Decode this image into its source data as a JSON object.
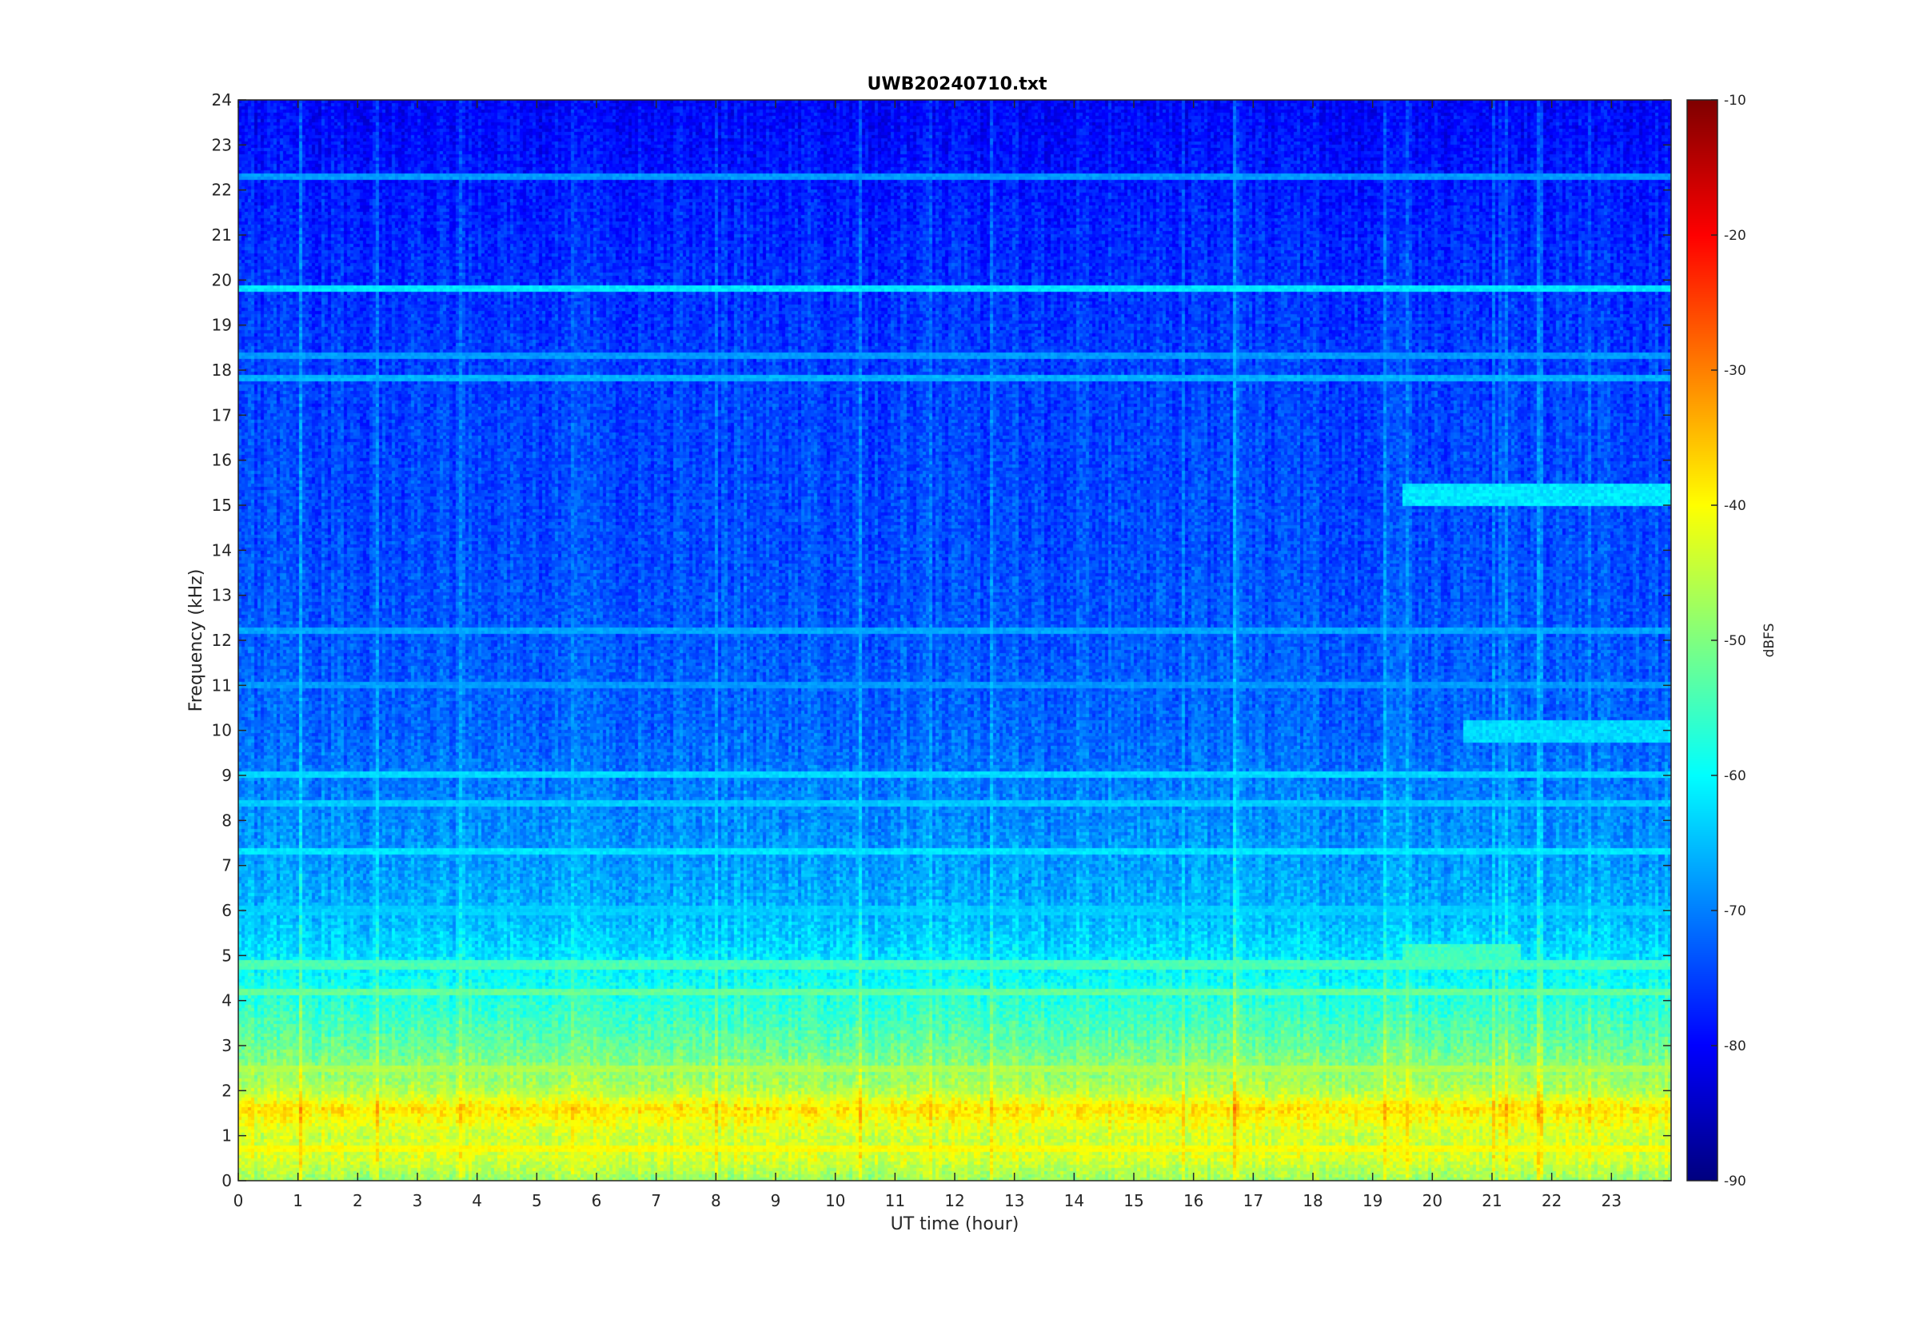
{
  "chart_data": {
    "type": "heatmap",
    "title": "UWB20240710.txt",
    "xlabel": "UT time (hour)",
    "ylabel": "Frequency (kHz)",
    "xlim": [
      0,
      24
    ],
    "ylim": [
      0,
      24
    ],
    "x_ticks": [
      "0",
      "1",
      "2",
      "3",
      "4",
      "5",
      "6",
      "7",
      "8",
      "9",
      "10",
      "11",
      "12",
      "13",
      "14",
      "15",
      "16",
      "17",
      "18",
      "19",
      "20",
      "21",
      "22",
      "23"
    ],
    "y_ticks": [
      "0",
      "1",
      "2",
      "3",
      "4",
      "5",
      "6",
      "7",
      "8",
      "9",
      "10",
      "11",
      "12",
      "13",
      "14",
      "15",
      "16",
      "17",
      "18",
      "19",
      "20",
      "21",
      "22",
      "23",
      "24"
    ],
    "colorbar": {
      "label": "dBFS",
      "range": [
        -90,
        -10
      ],
      "ticks": [
        "-10",
        "-20",
        "-30",
        "-40",
        "-50",
        "-60",
        "-70",
        "-80",
        "-90"
      ],
      "colormap": "jet"
    },
    "frequency_profile": [
      {
        "freq_khz": 0.0,
        "level_dbfs": -48
      },
      {
        "freq_khz": 0.5,
        "level_dbfs": -43
      },
      {
        "freq_khz": 1.0,
        "level_dbfs": -44
      },
      {
        "freq_khz": 1.6,
        "level_dbfs": -38
      },
      {
        "freq_khz": 2.0,
        "level_dbfs": -46
      },
      {
        "freq_khz": 3.0,
        "level_dbfs": -52
      },
      {
        "freq_khz": 4.0,
        "level_dbfs": -57
      },
      {
        "freq_khz": 5.0,
        "level_dbfs": -62
      },
      {
        "freq_khz": 6.0,
        "level_dbfs": -66
      },
      {
        "freq_khz": 8.0,
        "level_dbfs": -69
      },
      {
        "freq_khz": 10.0,
        "level_dbfs": -72
      },
      {
        "freq_khz": 14.0,
        "level_dbfs": -74
      },
      {
        "freq_khz": 18.0,
        "level_dbfs": -75
      },
      {
        "freq_khz": 21.0,
        "level_dbfs": -77
      },
      {
        "freq_khz": 24.0,
        "level_dbfs": -80
      }
    ],
    "persistent_lines": [
      {
        "freq_khz": 19.8,
        "level_dbfs": -62
      },
      {
        "freq_khz": 18.3,
        "level_dbfs": -68
      },
      {
        "freq_khz": 17.8,
        "level_dbfs": -66
      },
      {
        "freq_khz": 22.3,
        "level_dbfs": -68
      },
      {
        "freq_khz": 12.2,
        "level_dbfs": -67
      },
      {
        "freq_khz": 11.0,
        "level_dbfs": -68
      },
      {
        "freq_khz": 9.0,
        "level_dbfs": -63
      },
      {
        "freq_khz": 8.4,
        "level_dbfs": -64
      },
      {
        "freq_khz": 7.3,
        "level_dbfs": -62
      },
      {
        "freq_khz": 6.0,
        "level_dbfs": -64
      },
      {
        "freq_khz": 4.8,
        "level_dbfs": -54
      },
      {
        "freq_khz": 4.2,
        "level_dbfs": -52
      },
      {
        "freq_khz": 2.5,
        "level_dbfs": -46
      },
      {
        "freq_khz": 0.7,
        "level_dbfs": -40
      }
    ],
    "late_day_features": [
      {
        "time_h": [
          19.5,
          24.0
        ],
        "freq_khz": 15.2,
        "level_dbfs": -62
      },
      {
        "time_h": [
          20.5,
          24.0
        ],
        "freq_khz": 10.0,
        "level_dbfs": -63
      },
      {
        "time_h": [
          19.5,
          21.5
        ],
        "freq_khz": 5.0,
        "level_dbfs": -55
      }
    ]
  }
}
